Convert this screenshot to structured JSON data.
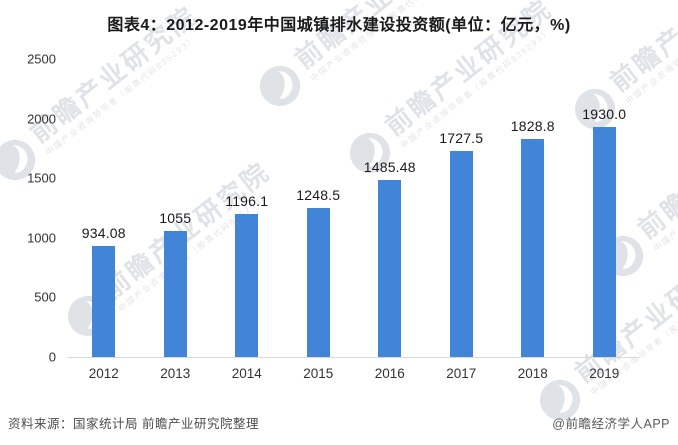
{
  "chart_data": {
    "type": "bar",
    "title": "图表4：2012-2019年中国城镇排水建设投资额(单位：亿元，%)",
    "categories": [
      "2012",
      "2013",
      "2014",
      "2015",
      "2016",
      "2017",
      "2018",
      "2019"
    ],
    "values": [
      934.08,
      1055,
      1196.1,
      1248.5,
      1485.48,
      1727.5,
      1828.8,
      1930.0
    ],
    "value_labels": [
      "934.08",
      "1055",
      "1196.1",
      "1248.5",
      "1485.48",
      "1727.5",
      "1828.8",
      "1930.0"
    ],
    "xlabel": "",
    "ylabel": "",
    "ylim": [
      0,
      2500
    ],
    "yticks": [
      0,
      500,
      1000,
      1500,
      2000,
      2500
    ],
    "grid": false,
    "legend": "none",
    "bar_color": "#4285d8"
  },
  "watermark": {
    "brand_large": "前瞻产业研究院",
    "brand_small": "中国产业咨询领导者（股票代码835293）",
    "logo": "qianzhan-logo-icon"
  },
  "footer": {
    "source": "资料来源：国家统计局 前瞻产业研究院整理",
    "credit": "@前瞻经济学人APP"
  },
  "colors": {
    "bar": "#4285d8",
    "axis_line": "#d9d9d9",
    "tick_text": "#333333",
    "title_text": "#1a1a1a",
    "footer_text": "#4d4d4d",
    "watermark": "#96a5b4"
  }
}
